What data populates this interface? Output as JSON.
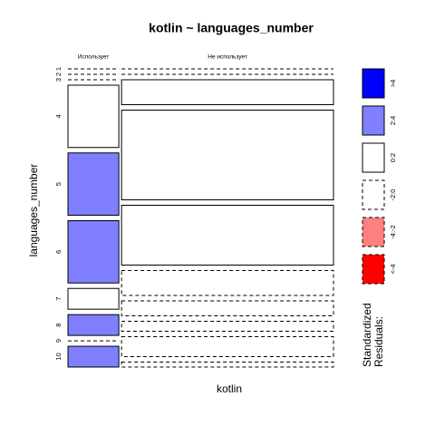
{
  "chart_data": {
    "type": "mosaic",
    "title": "kotlin ~ languages_number",
    "x_label": "kotlin",
    "y_label": "languages_number",
    "categories": [
      "1",
      "2",
      "3",
      "4",
      "5",
      "6",
      "7",
      "8",
      "9",
      "10"
    ],
    "series": [
      {
        "name": "Использует",
        "values": [
          0,
          0,
          0,
          3,
          3,
          3,
          1,
          1,
          0,
          1
        ],
        "shades": [
          3,
          3,
          3,
          2,
          1,
          1,
          2,
          1,
          3,
          1
        ]
      },
      {
        "name": "Не использует",
        "values": [
          0,
          0,
          5,
          18,
          12,
          5,
          3,
          2,
          4,
          1
        ],
        "shades": [
          3,
          3,
          2,
          2,
          2,
          3,
          3,
          3,
          3,
          3
        ]
      }
    ],
    "legend": {
      "title": "Standardized\nResiduals:",
      "items": [
        {
          "label": ">4",
          "color": "#0000ff",
          "linetype": "solid"
        },
        {
          "label": "2:4",
          "color": "#8080ff",
          "linetype": "solid"
        },
        {
          "label": "0:2",
          "color": "#ffffff",
          "linetype": "solid"
        },
        {
          "label": "-2:0",
          "color": "#ffffff",
          "linetype": "dashed"
        },
        {
          "label": "-4:-2",
          "color": "#ff8080",
          "linetype": "dashed"
        },
        {
          "label": "<-4",
          "color": "#ff0000",
          "linetype": "dashed"
        }
      ]
    }
  }
}
